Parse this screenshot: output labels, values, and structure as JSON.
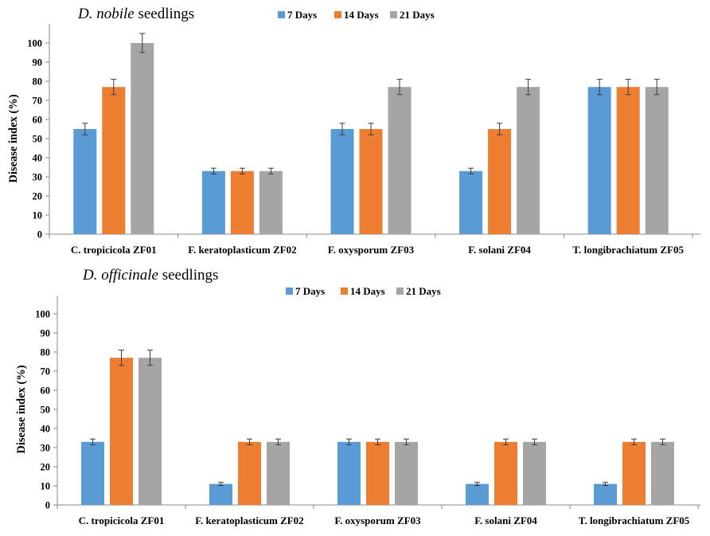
{
  "chart_data": [
    {
      "type": "bar",
      "title_species": "D. nobile",
      "title_rest": " seedlings",
      "ylabel": "Disease index (%)",
      "ylim": [
        0,
        100
      ],
      "yticks": [
        "0",
        "10",
        "20",
        "30",
        "40",
        "50",
        "60",
        "70",
        "80",
        "90",
        "100"
      ],
      "categories": [
        "C. tropicicola ZF01",
        "F. keratoplasticum ZF02",
        "F. oxysporum ZF03",
        "F. solani ZF04",
        "T. longibrachiatum ZF05"
      ],
      "legend_position": "top-center",
      "grid": false,
      "series": [
        {
          "name": "7 Days",
          "color": "#5b9bd5",
          "values": [
            55,
            33,
            55,
            33,
            77
          ],
          "errors": [
            3,
            1.5,
            3,
            1.5,
            4
          ]
        },
        {
          "name": "14 Days",
          "color": "#ed7d31",
          "values": [
            77,
            33,
            55,
            55,
            77
          ],
          "errors": [
            4,
            1.5,
            3,
            3,
            4
          ]
        },
        {
          "name": "21 Days",
          "color": "#a5a5a5",
          "values": [
            100,
            33,
            77,
            77,
            77
          ],
          "errors": [
            5,
            1.5,
            4,
            4,
            4
          ]
        }
      ]
    },
    {
      "type": "bar",
      "title_species": "D. officinale",
      "title_rest": " seedlings",
      "ylabel": "Disease index (%)",
      "ylim": [
        0,
        100
      ],
      "yticks": [
        "0",
        "10",
        "20",
        "30",
        "40",
        "50",
        "60",
        "70",
        "80",
        "90",
        "100"
      ],
      "categories": [
        "C. tropicicola ZF01",
        "F. keratoplasticum ZF02",
        "F. oxysporum ZF03",
        "F. solani ZF04",
        "T. longibrachiatum ZF05"
      ],
      "legend_position": "top-center",
      "grid": false,
      "series": [
        {
          "name": "7 Days",
          "color": "#5b9bd5",
          "values": [
            33,
            11,
            33,
            11,
            11
          ],
          "errors": [
            1.5,
            0.8,
            1.5,
            0.8,
            0.8
          ]
        },
        {
          "name": "14 Days",
          "color": "#ed7d31",
          "values": [
            77,
            33,
            33,
            33,
            33
          ],
          "errors": [
            4,
            1.5,
            1.5,
            1.5,
            1.5
          ]
        },
        {
          "name": "21 Days",
          "color": "#a5a5a5",
          "values": [
            77,
            33,
            33,
            33,
            33
          ],
          "errors": [
            4,
            1.5,
            1.5,
            1.5,
            1.5
          ]
        }
      ]
    }
  ]
}
